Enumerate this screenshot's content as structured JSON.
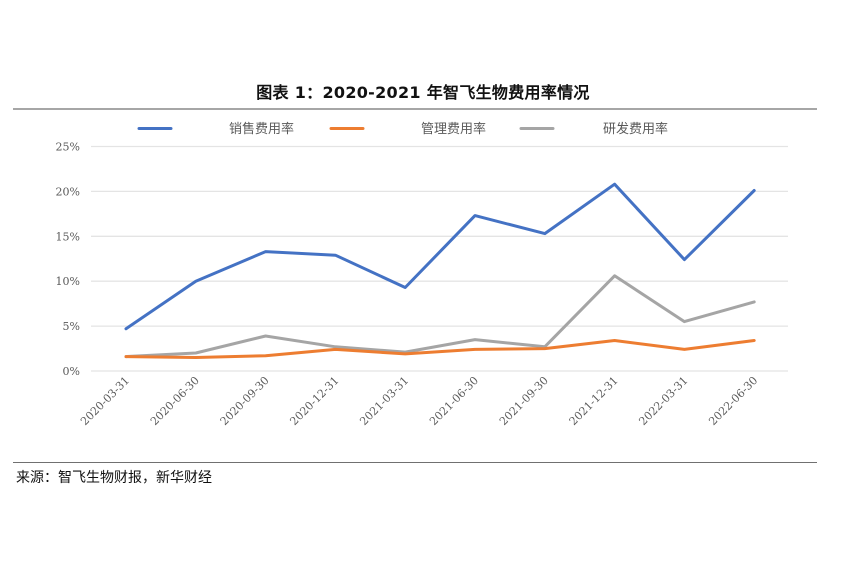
{
  "header": {
    "title": "图表 1：2020-2021 年智飞生物费用率情况"
  },
  "footer": {
    "source": "来源：智飞生物财报，新华财经"
  },
  "colors": {
    "sales": "#4472c4",
    "admin": "#ed7d31",
    "rnd": "#a5a5a5",
    "grid": "#e4e4e4",
    "axis_text": "#595959"
  },
  "chart_data": {
    "type": "line",
    "title": "图表 1：2020-2021 年智飞生物费用率情况",
    "xlabel": "",
    "ylabel": "",
    "ylim": [
      0,
      25
    ],
    "yticks": [
      "0%",
      "5%",
      "10%",
      "15%",
      "20%",
      "25%"
    ],
    "ytick_values": [
      0,
      5,
      10,
      15,
      20,
      25
    ],
    "grid": true,
    "legend_position": "top",
    "categories": [
      "2020-03-31",
      "2020-06-30",
      "2020-09-30",
      "2020-12-31",
      "2021-03-31",
      "2021-06-30",
      "2021-09-30",
      "2021-12-31",
      "2022-03-31",
      "2022-06-30"
    ],
    "series": [
      {
        "name": "销售费用率",
        "color": "#4472c4",
        "values": [
          4.7,
          10.0,
          13.3,
          12.9,
          9.3,
          17.3,
          15.3,
          20.8,
          12.4,
          20.1
        ]
      },
      {
        "name": "管理费用率",
        "color": "#ed7d31",
        "values": [
          1.6,
          1.5,
          1.7,
          2.4,
          1.9,
          2.4,
          2.5,
          3.4,
          2.4,
          3.4
        ]
      },
      {
        "name": "研发费用率",
        "color": "#a5a5a5",
        "values": [
          1.6,
          2.0,
          3.9,
          2.7,
          2.1,
          3.5,
          2.7,
          10.6,
          5.5,
          7.7
        ]
      }
    ],
    "unit": "%"
  }
}
